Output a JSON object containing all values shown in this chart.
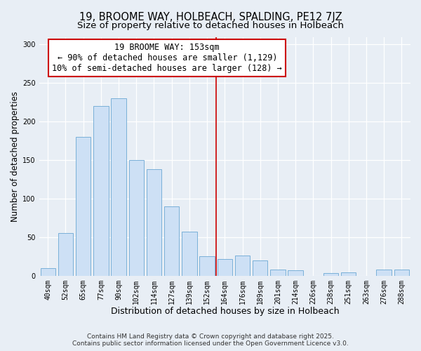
{
  "title": "19, BROOME WAY, HOLBEACH, SPALDING, PE12 7JZ",
  "subtitle": "Size of property relative to detached houses in Holbeach",
  "xlabel": "Distribution of detached houses by size in Holbeach",
  "ylabel": "Number of detached properties",
  "categories": [
    "40sqm",
    "52sqm",
    "65sqm",
    "77sqm",
    "90sqm",
    "102sqm",
    "114sqm",
    "127sqm",
    "139sqm",
    "152sqm",
    "164sqm",
    "176sqm",
    "189sqm",
    "201sqm",
    "214sqm",
    "226sqm",
    "238sqm",
    "251sqm",
    "263sqm",
    "276sqm",
    "288sqm"
  ],
  "values": [
    10,
    55,
    180,
    220,
    230,
    150,
    138,
    90,
    57,
    25,
    22,
    26,
    20,
    8,
    7,
    0,
    3,
    4,
    0,
    8,
    8
  ],
  "bar_color": "#cde0f5",
  "bar_edge_color": "#7ab0d8",
  "vline_x_index": 9.5,
  "vline_color": "#cc0000",
  "annotation_line1": "19 BROOME WAY: 153sqm",
  "annotation_line2": "← 90% of detached houses are smaller (1,129)",
  "annotation_line3": "10% of semi-detached houses are larger (128) →",
  "annotation_box_color": "#ffffff",
  "annotation_box_edge_color": "#cc0000",
  "ylim": [
    0,
    310
  ],
  "yticks": [
    0,
    50,
    100,
    150,
    200,
    250,
    300
  ],
  "background_color": "#e8eef5",
  "plot_bg_color": "#e8eef5",
  "grid_color": "#ffffff",
  "footer_line1": "Contains HM Land Registry data © Crown copyright and database right 2025.",
  "footer_line2": "Contains public sector information licensed under the Open Government Licence v3.0.",
  "title_fontsize": 10.5,
  "subtitle_fontsize": 9.5,
  "xlabel_fontsize": 9,
  "ylabel_fontsize": 8.5,
  "tick_fontsize": 7,
  "annotation_fontsize": 8.5,
  "footer_fontsize": 6.5
}
